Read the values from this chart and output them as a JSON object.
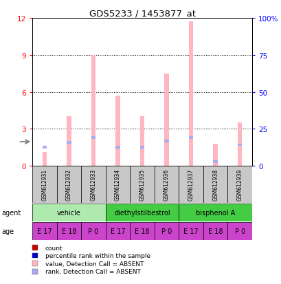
{
  "title": "GDS5233 / 1453877_at",
  "samples": [
    "GSM612931",
    "GSM612932",
    "GSM612933",
    "GSM612934",
    "GSM612935",
    "GSM612936",
    "GSM612937",
    "GSM612938",
    "GSM612939"
  ],
  "pink_values": [
    1.1,
    4.0,
    9.0,
    5.7,
    4.0,
    7.5,
    11.7,
    1.8,
    3.5
  ],
  "blue_rank_values": [
    1.4,
    1.8,
    2.2,
    1.4,
    1.4,
    1.9,
    2.2,
    0.25,
    1.6
  ],
  "blue_rank_heights": [
    0.22,
    0.22,
    0.22,
    0.22,
    0.22,
    0.22,
    0.22,
    0.22,
    0.22
  ],
  "ylim_left": [
    0,
    12
  ],
  "ylim_right": [
    0,
    100
  ],
  "yticks_left": [
    0,
    3,
    6,
    9,
    12
  ],
  "ytick_labels_left": [
    "0",
    "3",
    "6",
    "9",
    "12"
  ],
  "yticks_right": [
    0,
    25,
    50,
    75,
    100
  ],
  "ytick_labels_right": [
    "0",
    "25",
    "50",
    "75",
    "100%"
  ],
  "agent_groups": [
    {
      "label": "vehicle",
      "start": 0,
      "end": 3,
      "color": "#AEEAAE"
    },
    {
      "label": "diethylstilbestrol",
      "start": 3,
      "end": 6,
      "color": "#44CC44"
    },
    {
      "label": "bisphenol A",
      "start": 6,
      "end": 9,
      "color": "#44CC44"
    }
  ],
  "age_labels": [
    "E 17",
    "E 18",
    "P 0",
    "E 17",
    "E 18",
    "P 0",
    "E 17",
    "E 18",
    "P 0"
  ],
  "age_color": "#CC44CC",
  "sample_bg_color": "#C8C8C8",
  "pink_bar_color": "#FFB6C1",
  "blue_bar_color": "#AAAAEE",
  "bar_width": 0.18,
  "legend_items": [
    {
      "color": "#CC0000",
      "label": "count"
    },
    {
      "color": "#0000CC",
      "label": "percentile rank within the sample"
    },
    {
      "color": "#FFB6C1",
      "label": "value, Detection Call = ABSENT"
    },
    {
      "color": "#AAAAEE",
      "label": "rank, Detection Call = ABSENT"
    }
  ]
}
